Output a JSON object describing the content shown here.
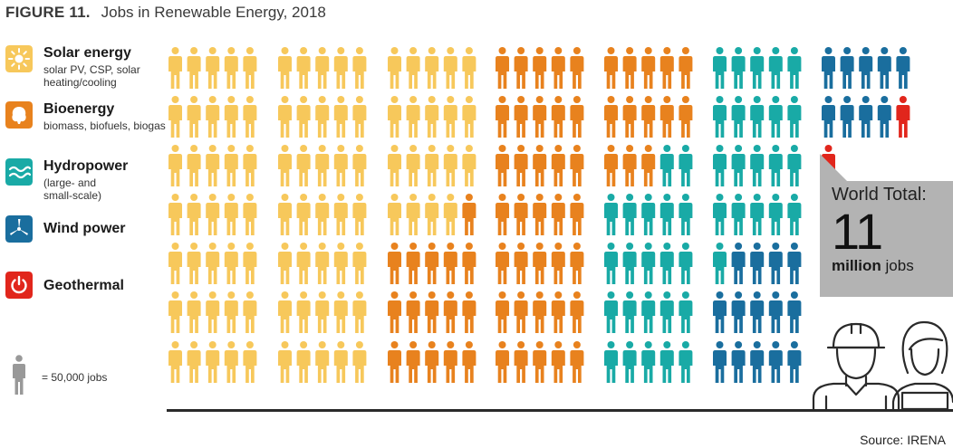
{
  "figure_label": "FIGURE 11.",
  "figure_title": "Jobs in Renewable Energy, 2018",
  "legend": [
    {
      "name": "Solar energy",
      "description": "solar PV, CSP, solar heating/cooling",
      "color": "#f7c85b",
      "icon": "sun-icon"
    },
    {
      "name": "Bioenergy",
      "description": "biomass, biofuels, biogas",
      "color": "#e8821e",
      "icon": "leaf-icon"
    },
    {
      "name": "Hydropower",
      "description": "(large- and small-scale)",
      "color": "#19aaa6",
      "icon": "waves-icon"
    },
    {
      "name": "Wind power",
      "description": "",
      "color": "#1a6e9e",
      "icon": "wind-turbine-icon"
    },
    {
      "name": "Geothermal",
      "description": "",
      "color": "#e1261c",
      "icon": "power-icon"
    }
  ],
  "scale": {
    "label": "= 50,000 jobs",
    "color": "#999999"
  },
  "total": {
    "line1": "World Total:",
    "value": "11",
    "unit_bold": "million",
    "unit": " jobs"
  },
  "source": "Source: IRENA",
  "chart_data": {
    "type": "pictograph",
    "unit_jobs_per_icon": 50000,
    "series": [
      {
        "name": "Solar energy",
        "icons": 89,
        "color": "#f7c85b"
      },
      {
        "name": "Bioenergy",
        "icons": 64,
        "color": "#e8821e"
      },
      {
        "name": "Hydropower",
        "icons": 43,
        "color": "#19aaa6"
      },
      {
        "name": "Wind power",
        "icons": 23,
        "color": "#1a6e9e"
      },
      {
        "name": "Geothermal",
        "icons": 2,
        "color": "#e1261c"
      }
    ],
    "total_icons": 221
  }
}
